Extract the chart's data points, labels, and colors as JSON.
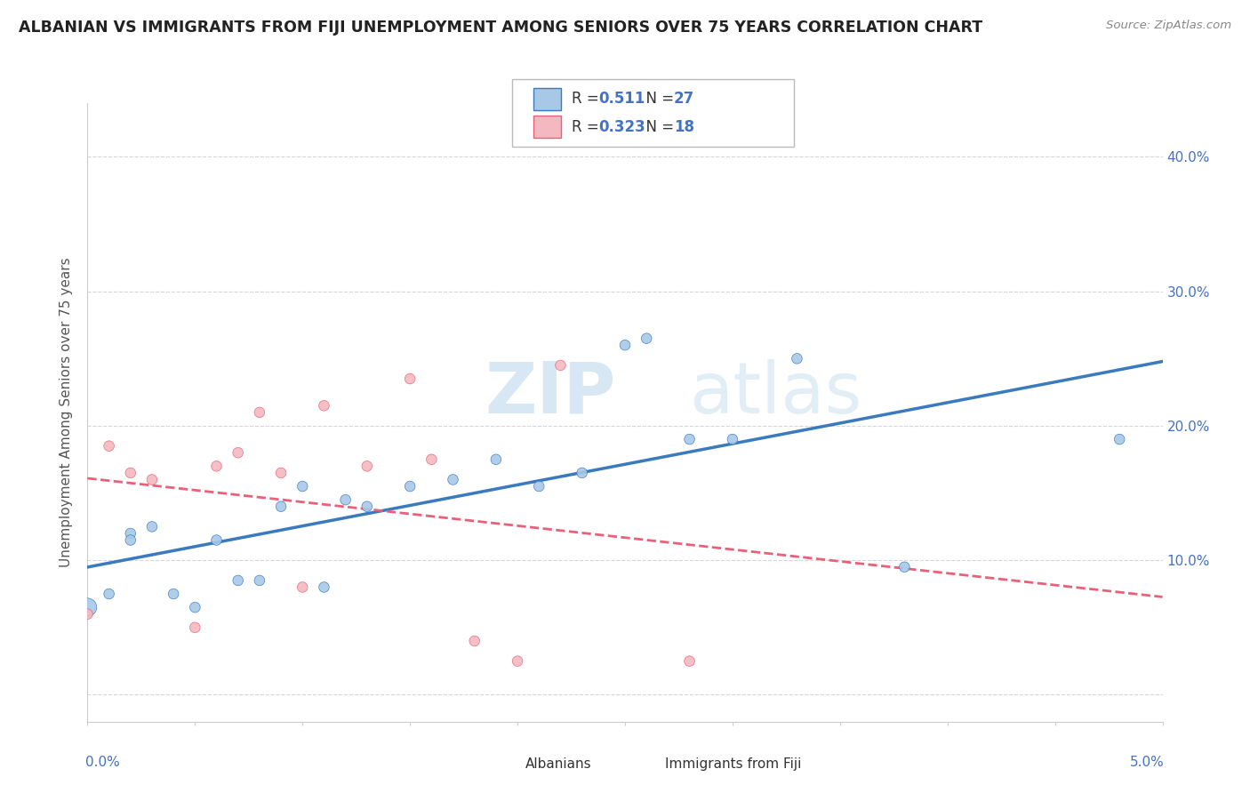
{
  "title": "ALBANIAN VS IMMIGRANTS FROM FIJI UNEMPLOYMENT AMONG SENIORS OVER 75 YEARS CORRELATION CHART",
  "source": "Source: ZipAtlas.com",
  "ylabel": "Unemployment Among Seniors over 75 years",
  "xlim": [
    0.0,
    0.05
  ],
  "ylim": [
    -0.02,
    0.44
  ],
  "yticks": [
    0.0,
    0.1,
    0.2,
    0.3,
    0.4
  ],
  "ytick_labels": [
    "",
    "10.0%",
    "20.0%",
    "30.0%",
    "40.0%"
  ],
  "albanians_color": "#a8c8e8",
  "fiji_color": "#f4b8c0",
  "trendline_albanian_color": "#3a7abf",
  "trendline_fiji_color": "#e8607a",
  "albanians_x": [
    0.0,
    0.001,
    0.002,
    0.002,
    0.003,
    0.004,
    0.005,
    0.006,
    0.007,
    0.008,
    0.009,
    0.01,
    0.011,
    0.012,
    0.013,
    0.015,
    0.017,
    0.019,
    0.021,
    0.023,
    0.025,
    0.026,
    0.028,
    0.03,
    0.033,
    0.038,
    0.048
  ],
  "albanians_y": [
    0.065,
    0.075,
    0.12,
    0.115,
    0.125,
    0.075,
    0.065,
    0.115,
    0.085,
    0.085,
    0.14,
    0.155,
    0.08,
    0.145,
    0.14,
    0.155,
    0.16,
    0.175,
    0.155,
    0.165,
    0.26,
    0.265,
    0.19,
    0.19,
    0.25,
    0.095,
    0.19
  ],
  "fiji_x": [
    0.0,
    0.001,
    0.002,
    0.003,
    0.005,
    0.006,
    0.007,
    0.008,
    0.009,
    0.01,
    0.011,
    0.013,
    0.015,
    0.016,
    0.018,
    0.02,
    0.022,
    0.028
  ],
  "fiji_y": [
    0.06,
    0.185,
    0.165,
    0.16,
    0.05,
    0.17,
    0.18,
    0.21,
    0.165,
    0.08,
    0.215,
    0.17,
    0.235,
    0.175,
    0.04,
    0.025,
    0.245,
    0.025
  ],
  "albanians_large_x": [
    0.0
  ],
  "albanians_large_y": [
    0.065
  ],
  "watermark_zip": "ZIP",
  "watermark_atlas": "atlas",
  "background_color": "#ffffff",
  "grid_color": "#dddddd",
  "dashed_line_color": "#cccccc",
  "axis_color": "#cccccc",
  "label_color": "#4472c4",
  "text_color": "#555555"
}
